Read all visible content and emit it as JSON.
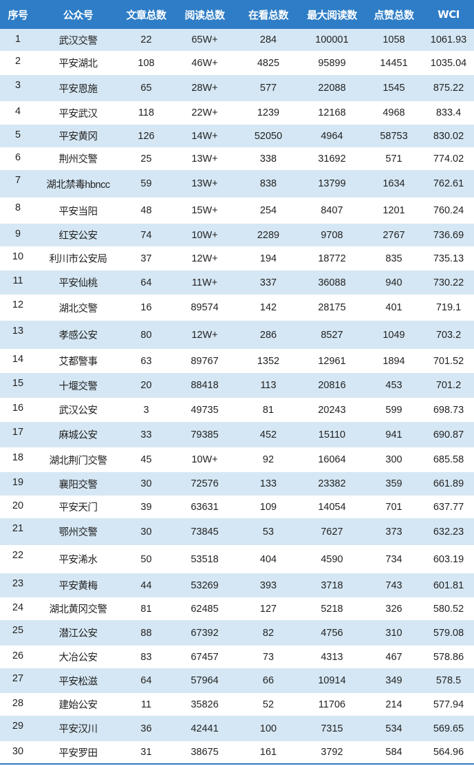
{
  "colors": {
    "header_bg": "#2E7DC6",
    "header_text": "#FFFFFF",
    "stripe": "#D5E7F4"
  },
  "headers": [
    "序号",
    "公众号",
    "文章总数",
    "阅读总数",
    "在看总数",
    "最大阅读数",
    "点赞总数",
    "WCI"
  ],
  "rows": [
    [
      "1",
      "武汉交警",
      "22",
      "65W+",
      "284",
      "100001",
      "1058",
      "1061.93"
    ],
    [
      "2",
      "平安湖北",
      "108",
      "46W+",
      "4825",
      "95899",
      "14451",
      "1035.04"
    ],
    [
      "3",
      "平安恩施",
      "65",
      "28W+",
      "577",
      "22088",
      "1545",
      "875.22"
    ],
    [
      "4",
      "平安武汉",
      "118",
      "22W+",
      "1239",
      "12168",
      "4968",
      "833.4"
    ],
    [
      "5",
      "平安黄冈",
      "126",
      "14W+",
      "52050",
      "4964",
      "58753",
      "830.02"
    ],
    [
      "6",
      "荆州交警",
      "25",
      "13W+",
      "338",
      "31692",
      "571",
      "774.02"
    ],
    [
      "7",
      "湖北禁毒hbncc",
      "59",
      "13W+",
      "838",
      "13799",
      "1634",
      "762.61"
    ],
    [
      "8",
      "平安当阳",
      "48",
      "15W+",
      "254",
      "8407",
      "1201",
      "760.24"
    ],
    [
      "9",
      "红安公安",
      "74",
      "10W+",
      "2289",
      "9708",
      "2767",
      "736.69"
    ],
    [
      "10",
      "利川市公安局",
      "37",
      "12W+",
      "194",
      "18772",
      "835",
      "735.13"
    ],
    [
      "11",
      "平安仙桃",
      "64",
      "11W+",
      "337",
      "36088",
      "940",
      "730.22"
    ],
    [
      "12",
      "湖北交警",
      "16",
      "89574",
      "142",
      "28175",
      "401",
      "719.1"
    ],
    [
      "13",
      "孝感公安",
      "80",
      "12W+",
      "286",
      "8527",
      "1049",
      "703.2"
    ],
    [
      "14",
      "艾都警事",
      "63",
      "89767",
      "1352",
      "12961",
      "1894",
      "701.52"
    ],
    [
      "15",
      "十堰交警",
      "20",
      "88418",
      "113",
      "20816",
      "453",
      "701.2"
    ],
    [
      "16",
      "武汉公安",
      "3",
      "49735",
      "81",
      "20243",
      "599",
      "698.73"
    ],
    [
      "17",
      "麻城公安",
      "33",
      "79385",
      "452",
      "15110",
      "941",
      "690.87"
    ],
    [
      "18",
      "湖北荆门交警",
      "45",
      "10W+",
      "92",
      "16064",
      "300",
      "685.58"
    ],
    [
      "19",
      "襄阳交警",
      "30",
      "72576",
      "133",
      "23382",
      "359",
      "661.89"
    ],
    [
      "20",
      "平安天门",
      "39",
      "63631",
      "109",
      "14054",
      "701",
      "637.77"
    ],
    [
      "21",
      "鄂州交警",
      "30",
      "73845",
      "53",
      "7627",
      "373",
      "632.23"
    ],
    [
      "22",
      "平安浠水",
      "50",
      "53518",
      "404",
      "4590",
      "734",
      "603.19"
    ],
    [
      "23",
      "平安黄梅",
      "44",
      "53269",
      "393",
      "3718",
      "743",
      "601.81"
    ],
    [
      "24",
      "湖北黄冈交警",
      "81",
      "62485",
      "127",
      "5218",
      "326",
      "580.52"
    ],
    [
      "25",
      "潜江公安",
      "88",
      "67392",
      "82",
      "4756",
      "310",
      "579.08"
    ],
    [
      "26",
      "大冶公安",
      "83",
      "67457",
      "73",
      "4313",
      "467",
      "578.86"
    ],
    [
      "27",
      "平安松滋",
      "64",
      "57964",
      "66",
      "10914",
      "349",
      "578.5"
    ],
    [
      "28",
      "建始公安",
      "11",
      "35826",
      "52",
      "11706",
      "214",
      "577.94"
    ],
    [
      "29",
      "平安汉川",
      "36",
      "42441",
      "100",
      "7315",
      "534",
      "569.65"
    ],
    [
      "30",
      "平安罗田",
      "31",
      "38675",
      "161",
      "3792",
      "584",
      "564.96"
    ]
  ]
}
